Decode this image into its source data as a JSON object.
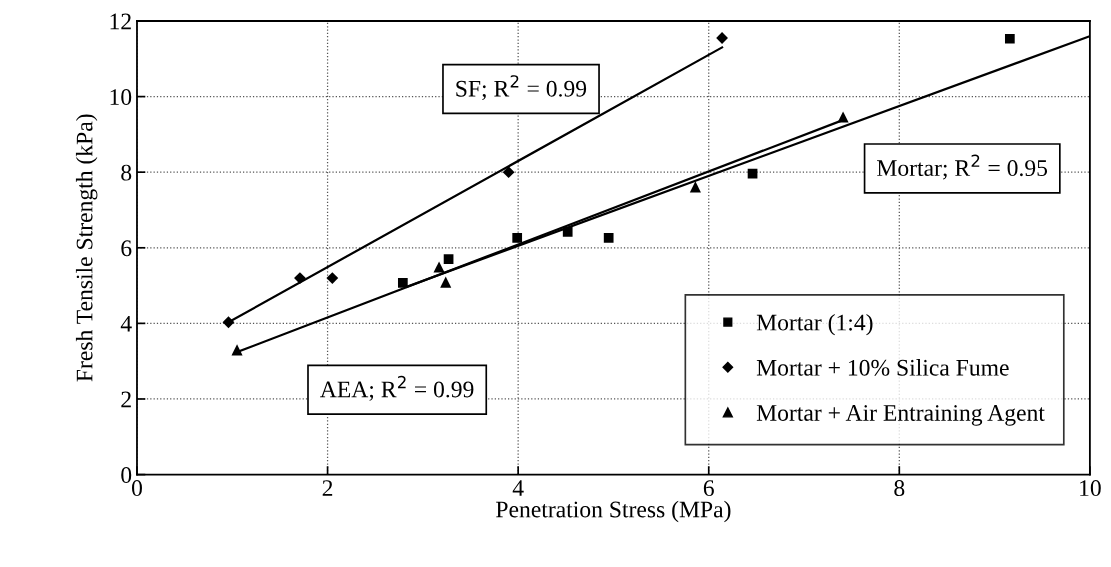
{
  "chart_data": {
    "type": "scatter",
    "xlabel": "Penetration Stress (MPa)",
    "ylabel": "Fresh Tensile Strength (kPa)",
    "xlim": [
      0,
      10
    ],
    "ylim": [
      0,
      12
    ],
    "xticks": [
      0,
      2,
      4,
      6,
      8,
      10
    ],
    "yticks": [
      0,
      2,
      4,
      6,
      8,
      10,
      12
    ],
    "grid": true,
    "legend": "bottom right",
    "series": [
      {
        "name": "Mortar (1:4)",
        "color": "#000000",
        "marker": "square",
        "x": [
          2.79,
          3.27,
          3.99,
          4.52,
          4.95,
          6.46,
          9.16
        ],
        "values": [
          5.07,
          5.7,
          6.26,
          6.42,
          6.26,
          7.96,
          11.53
        ]
      },
      {
        "name": "Mortar + 10% Silica Fume",
        "color": "#000000",
        "marker": "diamond",
        "x": [
          0.96,
          1.71,
          2.05,
          3.9,
          6.14
        ],
        "values": [
          4.03,
          5.2,
          5.2,
          8.0,
          11.55
        ]
      },
      {
        "name": "Mortar + Air Entraining Agent",
        "color": "#000000",
        "marker": "triangle",
        "x": [
          1.05,
          3.17,
          3.24,
          5.86,
          7.41
        ],
        "values": [
          3.3,
          5.49,
          5.09,
          7.61,
          9.46
        ]
      },
      {
        "type": "line",
        "color": "#000000",
        "x": [
          0.96,
          6.14
        ],
        "values": [
          4.03,
          11.3
        ]
      },
      {
        "type": "line",
        "color": "#000000",
        "x": [
          1.05,
          7.41
        ],
        "values": [
          3.24,
          9.38
        ]
      },
      {
        "type": "line",
        "color": "#000000",
        "x": [
          2.83,
          10
        ],
        "values": [
          4.97,
          11.6
        ]
      }
    ],
    "annotations": [
      "SF; R$^{2}$ = 0.99",
      "AEA; R$^{2}$ = 0.99",
      "Mortar; R$^{2}$ = 0.95"
    ]
  }
}
